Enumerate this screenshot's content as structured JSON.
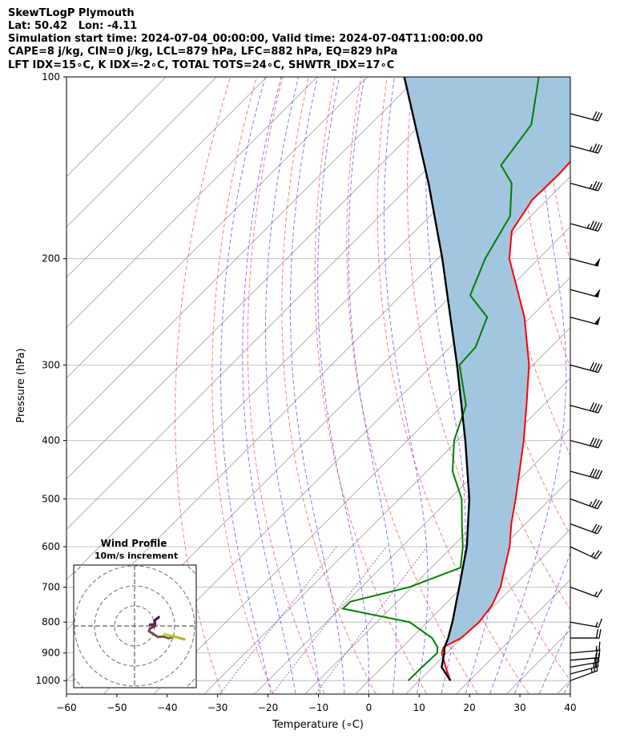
{
  "header": {
    "line1": "SkewTLogP Plymouth",
    "line2": "Lat: 50.42   Lon: -4.11",
    "line3": "Simulation start time: 2024-07-04_00:00:00, Valid time: 2024-07-04T11:00:00.00",
    "line4": "CAPE=8 j/kg, CIN=0 j/kg, LCL=879 hPa, LFC=882 hPa, EQ=829 hPa",
    "line5": "LFT IDX=15∘C, K IDX=-2∘C, TOTAL TOTS=24∘C, SHWTR_IDX=17∘C"
  },
  "chart_data": {
    "type": "line",
    "title": "SkewTLogP Plymouth",
    "xlabel": "Temperature (∘C)",
    "ylabel": "Pressure (hPa)",
    "xlim": [
      -60,
      40
    ],
    "ylim": [
      1050,
      100
    ],
    "x_ticks": [
      "−60",
      "−50",
      "−40",
      "−30",
      "−20",
      "−10",
      "0",
      "10",
      "20",
      "30",
      "40"
    ],
    "x_tick_values": [
      -60,
      -50,
      -40,
      -30,
      -20,
      -10,
      0,
      10,
      20,
      30,
      40
    ],
    "y_ticks": [
      "100",
      "200",
      "300",
      "400",
      "500",
      "600",
      "700",
      "800",
      "900",
      "1000"
    ],
    "y_tick_values": [
      100,
      200,
      300,
      400,
      500,
      600,
      700,
      800,
      900,
      1000
    ],
    "series": [
      {
        "name": "Temperature",
        "color": "#ff0000",
        "points": [
          [
            1000,
            16.2
          ],
          [
            950,
            12.6
          ],
          [
            900,
            9.0
          ],
          [
            880,
            8.2
          ],
          [
            850,
            9.9
          ],
          [
            800,
            10.3
          ],
          [
            750,
            9.5
          ],
          [
            700,
            7.6
          ],
          [
            650,
            4.6
          ],
          [
            600,
            1.4
          ],
          [
            550,
            -2.8
          ],
          [
            500,
            -6.9
          ],
          [
            450,
            -11.6
          ],
          [
            400,
            -16.9
          ],
          [
            350,
            -23.3
          ],
          [
            300,
            -30.8
          ],
          [
            250,
            -41.2
          ],
          [
            200,
            -55.8
          ],
          [
            180,
            -60.8
          ],
          [
            160,
            -62.9
          ],
          [
            145,
            -62.7
          ],
          [
            130,
            -63.2
          ],
          [
            115,
            -64.5
          ],
          [
            100,
            -66.7
          ]
        ]
      },
      {
        "name": "Dewpoint",
        "color": "#008000",
        "points": [
          [
            1000,
            7.8
          ],
          [
            950,
            7.9
          ],
          [
            900,
            8.1
          ],
          [
            880,
            7.0
          ],
          [
            850,
            4.1
          ],
          [
            800,
            -3.5
          ],
          [
            760,
            -19.4
          ],
          [
            740,
            -19.3
          ],
          [
            700,
            -10.5
          ],
          [
            650,
            -4.2
          ],
          [
            600,
            -7.9
          ],
          [
            550,
            -12.6
          ],
          [
            500,
            -17.6
          ],
          [
            450,
            -24.9
          ],
          [
            400,
            -30.7
          ],
          [
            350,
            -35.3
          ],
          [
            300,
            -44.6
          ],
          [
            280,
            -45.0
          ],
          [
            250,
            -48.6
          ],
          [
            230,
            -56.3
          ],
          [
            200,
            -60.6
          ],
          [
            170,
            -64.1
          ],
          [
            150,
            -70.3
          ],
          [
            140,
            -76.0
          ],
          [
            120,
            -78.0
          ],
          [
            100,
            -86.0
          ]
        ]
      },
      {
        "name": "Parcel",
        "color": "#000000",
        "points": [
          [
            1000,
            16.2
          ],
          [
            950,
            11.8
          ],
          [
            900,
            9.5
          ],
          [
            880,
            8.4
          ],
          [
            850,
            7.3
          ],
          [
            800,
            5.0
          ],
          [
            700,
            -0.6
          ],
          [
            600,
            -7.1
          ],
          [
            500,
            -16.1
          ],
          [
            400,
            -28.5
          ],
          [
            300,
            -45.1
          ],
          [
            250,
            -55.9
          ],
          [
            200,
            -69.1
          ],
          [
            150,
            -86.8
          ],
          [
            100,
            -112.7
          ]
        ]
      }
    ],
    "wind_barbs": [
      {
        "pressure": 1000,
        "speed_kt": 25,
        "direction_deg": 250
      },
      {
        "pressure": 975,
        "speed_kt": 20,
        "direction_deg": 255
      },
      {
        "pressure": 950,
        "speed_kt": 20,
        "direction_deg": 260
      },
      {
        "pressure": 925,
        "speed_kt": 20,
        "direction_deg": 265
      },
      {
        "pressure": 900,
        "speed_kt": 15,
        "direction_deg": 265
      },
      {
        "pressure": 850,
        "speed_kt": 20,
        "direction_deg": 270
      },
      {
        "pressure": 800,
        "speed_kt": 15,
        "direction_deg": 280
      },
      {
        "pressure": 700,
        "speed_kt": 15,
        "direction_deg": 290
      },
      {
        "pressure": 600,
        "speed_kt": 25,
        "direction_deg": 295
      },
      {
        "pressure": 550,
        "speed_kt": 30,
        "direction_deg": 290
      },
      {
        "pressure": 500,
        "speed_kt": 35,
        "direction_deg": 290
      },
      {
        "pressure": 450,
        "speed_kt": 40,
        "direction_deg": 285
      },
      {
        "pressure": 400,
        "speed_kt": 40,
        "direction_deg": 285
      },
      {
        "pressure": 350,
        "speed_kt": 40,
        "direction_deg": 285
      },
      {
        "pressure": 300,
        "speed_kt": 40,
        "direction_deg": 285
      },
      {
        "pressure": 250,
        "speed_kt": 50,
        "direction_deg": 285
      },
      {
        "pressure": 225,
        "speed_kt": 50,
        "direction_deg": 285
      },
      {
        "pressure": 200,
        "speed_kt": 50,
        "direction_deg": 285
      },
      {
        "pressure": 175,
        "speed_kt": 45,
        "direction_deg": 285
      },
      {
        "pressure": 150,
        "speed_kt": 35,
        "direction_deg": 285
      },
      {
        "pressure": 130,
        "speed_kt": 35,
        "direction_deg": 285
      },
      {
        "pressure": 115,
        "speed_kt": 30,
        "direction_deg": 285
      }
    ],
    "inset": {
      "title": "Wind Profile",
      "subtitle": "10m/s increment"
    },
    "colors": {
      "cape_fill": "#a3c6e0",
      "grid": "#b0b0b0",
      "dry_adiabat": "#ff4040",
      "moist_adiabat": "#4040ff",
      "mixing_ratio": "#9020c0",
      "isotherm": "#909090"
    }
  }
}
